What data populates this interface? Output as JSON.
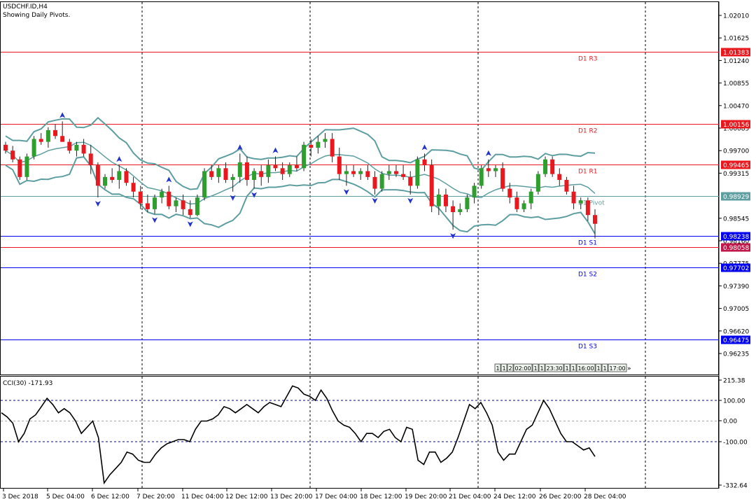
{
  "header": {
    "symbol_line": "USDCHF.ID,H4",
    "subtitle": "Showing Daily Pivots."
  },
  "colors": {
    "bull": "#2e9e2e",
    "bear": "#e8181e",
    "band": "#5f9ea0",
    "resistance": "#e8181e",
    "support": "#0000ee",
    "pivot": "#5f9ea0",
    "arrow": "#2233cc",
    "grid": "#000000",
    "level_dash": "#0000aa"
  },
  "chart_data": [
    {
      "type": "candlestick",
      "title": "USDCHF.ID,H4",
      "ylim": [
        0.958,
        1.0235
      ],
      "y_ticks": [
        "1.02010",
        "1.01625",
        "1.01240",
        "1.00855",
        "1.00470",
        "1.00085",
        "0.99700",
        "0.99315",
        "0.98545",
        "0.98160",
        "0.97775",
        "0.97390",
        "0.97005",
        "0.96620",
        "0.96235"
      ],
      "x_ticks": [
        "3 Dec 2018",
        "5 Dec 04:00",
        "6 Dec 12:00",
        "7 Dec 20:00",
        "11 Dec 04:00",
        "12 Dec 12:00",
        "13 Dec 20:00",
        "17 Dec 04:00",
        "18 Dec 12:00",
        "19 Dec 20:00",
        "21 Dec 04:00",
        "24 Dec 12:00",
        "26 Dec 20:00",
        "28 Dec 04:00"
      ],
      "pivot_levels": [
        {
          "name": "D1 R3",
          "value": 1.01383,
          "label": "1.01383",
          "kind": "resistance"
        },
        {
          "name": "D1 R2",
          "value": 1.00156,
          "label": "1.00156",
          "kind": "resistance"
        },
        {
          "name": "D1 R1",
          "value": 0.99465,
          "label": "0.99465",
          "kind": "resistance"
        },
        {
          "name": "D1 Pivot",
          "value": 0.98929,
          "label": "0.98929",
          "kind": "pivot"
        },
        {
          "name": "D1 S1",
          "value": 0.98238,
          "label": "0.98238",
          "kind": "support"
        },
        {
          "name": "D1 S2",
          "value": 0.97702,
          "label": "0.97702",
          "kind": "support"
        },
        {
          "name": "D1 S3",
          "value": 0.96475,
          "label": "0.96475",
          "kind": "support"
        }
      ],
      "current_price": {
        "value": 0.98058,
        "label": "0.98058"
      },
      "candles": [
        [
          0.998,
          0.9985,
          0.9965,
          0.997
        ],
        [
          0.997,
          0.9978,
          0.995,
          0.9955
        ],
        [
          0.9955,
          0.996,
          0.992,
          0.9925
        ],
        [
          0.9925,
          0.9965,
          0.992,
          0.996
        ],
        [
          0.996,
          0.9995,
          0.9955,
          0.999
        ],
        [
          0.999,
          1.0,
          0.998,
          0.9985
        ],
        [
          0.9985,
          1.001,
          0.9975,
          1.0005
        ],
        [
          1.0005,
          1.0015,
          0.999,
          0.9995
        ],
        [
          0.9995,
          1.002,
          0.999,
          0.9985
        ],
        [
          0.9985,
          0.999,
          0.9965,
          0.997
        ],
        [
          0.997,
          0.9985,
          0.996,
          0.998
        ],
        [
          0.998,
          0.999,
          0.996,
          0.9965
        ],
        [
          0.9965,
          0.998,
          0.993,
          0.9945
        ],
        [
          0.9945,
          0.995,
          0.989,
          0.991
        ],
        [
          0.991,
          0.993,
          0.9905,
          0.9925
        ],
        [
          0.9925,
          0.994,
          0.9915,
          0.992
        ],
        [
          0.992,
          0.9945,
          0.9905,
          0.9935
        ],
        [
          0.9935,
          0.994,
          0.991,
          0.9915
        ],
        [
          0.9915,
          0.9925,
          0.989,
          0.99
        ],
        [
          0.99,
          0.991,
          0.987,
          0.988
        ],
        [
          0.988,
          0.9895,
          0.9865,
          0.987
        ],
        [
          0.987,
          0.9895,
          0.9862,
          0.989
        ],
        [
          0.989,
          0.9905,
          0.988,
          0.99
        ],
        [
          0.99,
          0.991,
          0.987,
          0.9875
        ],
        [
          0.9875,
          0.989,
          0.9865,
          0.9885
        ],
        [
          0.9885,
          0.9895,
          0.986,
          0.987
        ],
        [
          0.987,
          0.9885,
          0.9855,
          0.986
        ],
        [
          0.986,
          0.9895,
          0.9858,
          0.989
        ],
        [
          0.989,
          0.994,
          0.9885,
          0.9935
        ],
        [
          0.9935,
          0.9945,
          0.992,
          0.9925
        ],
        [
          0.9925,
          0.9945,
          0.9915,
          0.994
        ],
        [
          0.994,
          0.995,
          0.9915,
          0.992
        ],
        [
          0.992,
          0.993,
          0.99,
          0.9925
        ],
        [
          0.9925,
          0.9965,
          0.9915,
          0.995
        ],
        [
          0.995,
          0.996,
          0.991,
          0.992
        ],
        [
          0.992,
          0.994,
          0.9905,
          0.9935
        ],
        [
          0.9935,
          0.9945,
          0.991,
          0.9925
        ],
        [
          0.9925,
          0.9955,
          0.9915,
          0.9945
        ],
        [
          0.9945,
          0.996,
          0.9935,
          0.994
        ],
        [
          0.994,
          0.995,
          0.992,
          0.993
        ],
        [
          0.993,
          0.995,
          0.9925,
          0.9945
        ],
        [
          0.9945,
          0.996,
          0.9935,
          0.994
        ],
        [
          0.994,
          0.9985,
          0.9935,
          0.998
        ],
        [
          0.998,
          0.999,
          0.996,
          0.9975
        ],
        [
          0.9975,
          0.9995,
          0.9965,
          0.9985
        ],
        [
          0.9985,
          1.0,
          0.9975,
          0.999
        ],
        [
          0.999,
          1.0,
          0.995,
          0.996
        ],
        [
          0.996,
          0.9975,
          0.992,
          0.993
        ],
        [
          0.993,
          0.9945,
          0.991,
          0.9935
        ],
        [
          0.9935,
          0.9945,
          0.9925,
          0.993
        ],
        [
          0.993,
          0.994,
          0.992,
          0.9935
        ],
        [
          0.9935,
          0.9945,
          0.992,
          0.9925
        ],
        [
          0.9925,
          0.9935,
          0.9895,
          0.9905
        ],
        [
          0.9905,
          0.9935,
          0.99,
          0.993
        ],
        [
          0.993,
          0.9945,
          0.992,
          0.9935
        ],
        [
          0.9935,
          0.9945,
          0.9925,
          0.993
        ],
        [
          0.993,
          0.9945,
          0.992,
          0.9925
        ],
        [
          0.9925,
          0.9935,
          0.9895,
          0.991
        ],
        [
          0.991,
          0.996,
          0.9905,
          0.9955
        ],
        [
          0.9955,
          0.9965,
          0.9935,
          0.9945
        ],
        [
          0.9945,
          0.9955,
          0.9865,
          0.9875
        ],
        [
          0.9875,
          0.9905,
          0.986,
          0.9895
        ],
        [
          0.9895,
          0.9905,
          0.9865,
          0.9875
        ],
        [
          0.9875,
          0.9885,
          0.9835,
          0.9865
        ],
        [
          0.9865,
          0.988,
          0.986,
          0.987
        ],
        [
          0.987,
          0.9895,
          0.9865,
          0.989
        ],
        [
          0.989,
          0.9915,
          0.988,
          0.991
        ],
        [
          0.991,
          0.9945,
          0.9905,
          0.994
        ],
        [
          0.994,
          0.9955,
          0.9925,
          0.9935
        ],
        [
          0.9935,
          0.9945,
          0.9925,
          0.994
        ],
        [
          0.994,
          0.995,
          0.99,
          0.9905
        ],
        [
          0.9905,
          0.9915,
          0.988,
          0.989
        ],
        [
          0.989,
          0.99,
          0.9865,
          0.987
        ],
        [
          0.987,
          0.9885,
          0.9865,
          0.988
        ],
        [
          0.988,
          0.9905,
          0.987,
          0.99
        ],
        [
          0.99,
          0.9935,
          0.9895,
          0.993
        ],
        [
          0.993,
          0.996,
          0.9925,
          0.9955
        ],
        [
          0.9955,
          0.996,
          0.9925,
          0.993
        ],
        [
          0.993,
          0.994,
          0.991,
          0.992
        ],
        [
          0.992,
          0.9925,
          0.9895,
          0.99
        ],
        [
          0.99,
          0.991,
          0.987,
          0.988
        ],
        [
          0.988,
          0.989,
          0.987,
          0.9885
        ],
        [
          0.9885,
          0.989,
          0.985,
          0.986
        ],
        [
          0.986,
          0.987,
          0.982,
          0.9845
        ]
      ]
    },
    {
      "type": "line",
      "title": "CCI(30) -171.93",
      "ylim": [
        -332.64,
        215.38
      ],
      "y_ticks": [
        "215.38",
        "100.00",
        "0.00",
        "-100.00",
        "-332.64"
      ],
      "levels": [
        100,
        0,
        -100
      ],
      "values": [
        40,
        20,
        -10,
        -100,
        -60,
        10,
        30,
        70,
        110,
        80,
        40,
        60,
        40,
        0,
        -60,
        -30,
        0,
        -80,
        -300,
        -260,
        -230,
        -200,
        -150,
        -160,
        -190,
        -200,
        -200,
        -160,
        -130,
        -110,
        -100,
        -90,
        -90,
        -100,
        -40,
        0,
        0,
        10,
        30,
        70,
        60,
        40,
        60,
        80,
        60,
        40,
        70,
        90,
        80,
        70,
        120,
        170,
        160,
        130,
        120,
        100,
        150,
        110,
        50,
        0,
        -20,
        -30,
        -60,
        -100,
        -60,
        -60,
        -80,
        -50,
        -40,
        -80,
        -100,
        -30,
        -40,
        -190,
        -210,
        -150,
        -150,
        -200,
        -180,
        -150,
        -80,
        0,
        80,
        60,
        90,
        40,
        -20,
        -150,
        -190,
        -160,
        -160,
        -100,
        -40,
        -20,
        40,
        100,
        60,
        0,
        -60,
        -100,
        -100,
        -120,
        -140,
        -130,
        -171.93
      ]
    }
  ],
  "time_labels": [
    "1",
    "1",
    "2",
    "02:00",
    "1",
    "1",
    "23:30",
    "1",
    "1",
    "16:00",
    "1",
    "1",
    "17:00"
  ],
  "time_label_suffix": "»"
}
